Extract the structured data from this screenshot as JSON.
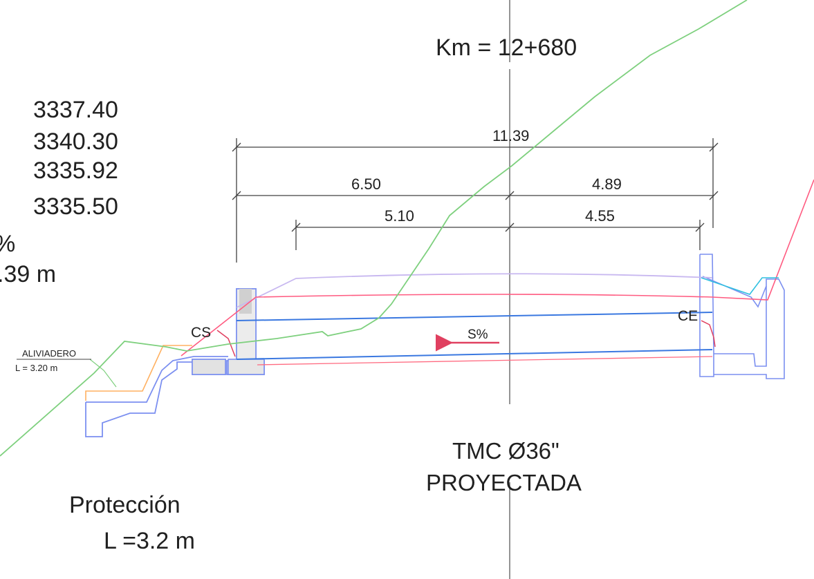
{
  "station": "Km = 12+680",
  "elevations": [
    "3337.40",
    "3340.30",
    "3335.92",
    "3335.50"
  ],
  "left_partial": [
    "%",
    ".39 m"
  ],
  "dimensions": {
    "total": "11.39",
    "left_half": "6.50",
    "right_half": "4.89",
    "inner_left": "5.10",
    "inner_right": "4.55"
  },
  "labels": {
    "inlet": "CE",
    "outlet": "CS",
    "slope": "S%",
    "spillway_title": "ALIVIADERO",
    "spillway_length": "L  =  3.20  m"
  },
  "pipe": {
    "line1": "TMC Ø36\"",
    "line2": "PROYECTADA"
  },
  "protection": {
    "title": "Protección",
    "length": "L =3.2 m"
  },
  "colors": {
    "terrain": "#7ed07e",
    "road_surface": "#ff7a9a",
    "road_outline": "#c8b8f0",
    "culvert": "#3a78e0",
    "structure": "#7b8ff0",
    "spillway": "#ffb060",
    "dim_lines": "#404040",
    "ce_channel": "#30c0e0",
    "slope_arrow": "#e04060"
  }
}
